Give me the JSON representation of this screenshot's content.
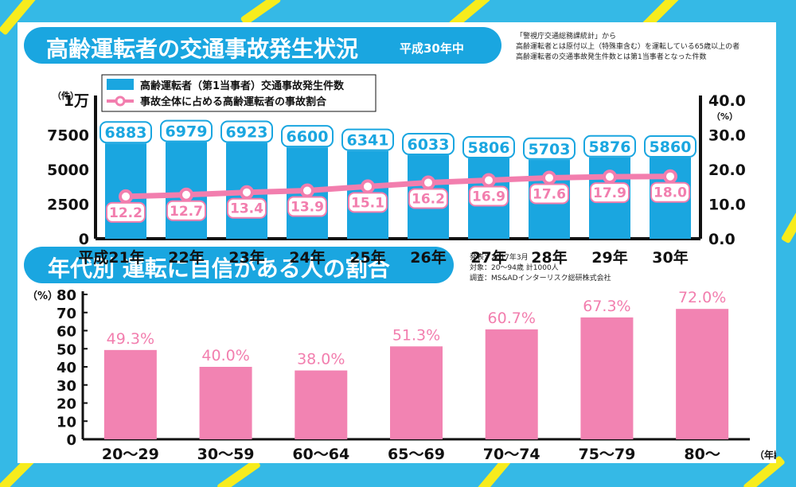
{
  "colors": {
    "frame": "#35b9e6",
    "stripe": "#f7ec1d",
    "banner": "#1aa6e0",
    "bar1": "#1aa6e0",
    "line": "#f27eae",
    "bar2": "#f283b2",
    "pctText": "#f27eae"
  },
  "top": {
    "title": "高齢運転者の交通事故発生状況",
    "subtitle": "平成30年中",
    "source_lines": [
      "「警視庁交通総務課統計」から",
      "高齢運転者とは原付以上（特殊車含む）を運転している65歳以上の者",
      "高齢運転者の交通事故発生件数とは第1当事者となった件数"
    ]
  },
  "bottom": {
    "title": "年代別  運転に自信がある人の割合",
    "source_lines": [
      "発表：2017年3月",
      "対象：20～94歳 計1000人",
      "調査：MS&ADインターリスク総研株式会社"
    ]
  },
  "chart_data": [
    {
      "type": "bar",
      "categories": [
        "平成21年",
        "22年",
        "23年",
        "24年",
        "25年",
        "26年",
        "27年",
        "28年",
        "29年",
        "30年"
      ],
      "series": [
        {
          "name": "高齢運転者（第1当事者）交通事故発生件数",
          "axis": "left",
          "values": [
            6883,
            6979,
            6923,
            6600,
            6341,
            6033,
            5806,
            5703,
            5876,
            5860
          ]
        },
        {
          "name": "事故全体に占める高齢運転者の事故割合",
          "axis": "right",
          "type": "line",
          "values": [
            12.2,
            12.7,
            13.4,
            13.9,
            15.1,
            16.2,
            16.9,
            17.6,
            17.9,
            18.0
          ]
        }
      ],
      "ylabel": "（件）",
      "y2label": "（%）",
      "ylim": [
        0,
        10000
      ],
      "y2lim": [
        0,
        40
      ],
      "yticks": [
        "0",
        "2500",
        "5000",
        "7500",
        "1万"
      ],
      "y2ticks": [
        "0.0",
        "10.0",
        "20.0",
        "30.0",
        "40.0"
      ],
      "legend": "top-left"
    },
    {
      "type": "bar",
      "categories": [
        "20～29",
        "30～59",
        "60～64",
        "65～69",
        "70～74",
        "75～79",
        "80～"
      ],
      "values": [
        49.3,
        40.0,
        38.0,
        51.3,
        60.7,
        67.3,
        72.0
      ],
      "labels": [
        "49.3%",
        "40.0%",
        "38.0%",
        "51.3%",
        "60.7%",
        "67.3%",
        "72.0%"
      ],
      "ylabel": "（%）",
      "xlabel": "（年齢）",
      "ylim": [
        0,
        80
      ],
      "yticks": [
        "0",
        "10",
        "20",
        "30",
        "40",
        "50",
        "60",
        "70",
        "80"
      ]
    }
  ]
}
